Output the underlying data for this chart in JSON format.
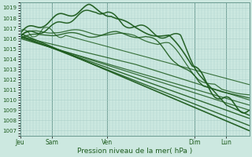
{
  "title": "",
  "xlabel": "Pression niveau de la mer( hPa )",
  "bg_color": "#cce8e0",
  "grid_color_major": "#aacfc8",
  "grid_color_minor": "#bbddd6",
  "line_color": "#1e5c1e",
  "ylim": [
    1006.5,
    1019.5
  ],
  "yticks": [
    1007,
    1008,
    1009,
    1010,
    1011,
    1012,
    1013,
    1014,
    1015,
    1016,
    1017,
    1018,
    1019
  ],
  "day_labels": [
    "Jeu",
    "Sam",
    "Ven",
    "Dim",
    "Lun"
  ],
  "day_positions": [
    0.0,
    0.14,
    0.38,
    0.76,
    0.9
  ],
  "figsize": [
    3.2,
    2.0
  ],
  "dpi": 100
}
